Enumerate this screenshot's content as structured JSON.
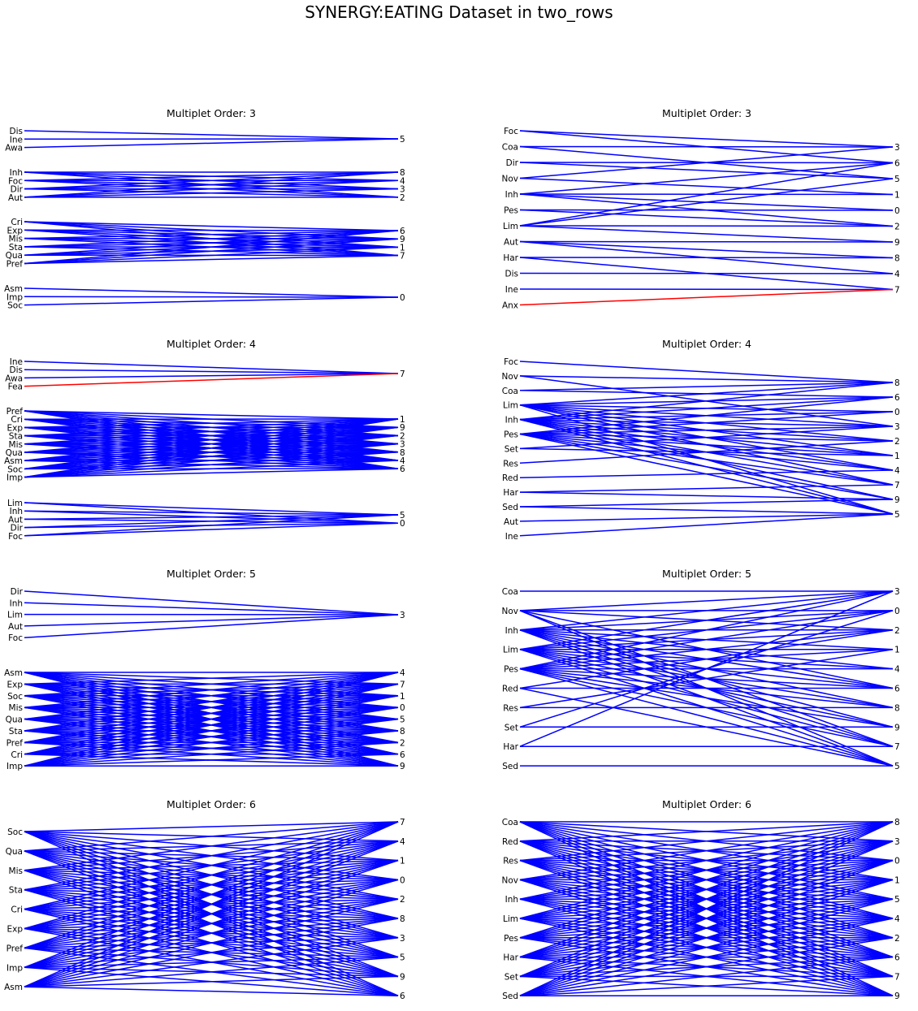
{
  "figure_title": "SYNERGY:EATING Dataset in two_rows",
  "colors": {
    "edge": "#0000ff",
    "highlight": "#ff0000",
    "text": "#000000",
    "background": "#ffffff"
  },
  "panels": [
    {
      "title": "Multiplet Order: 3",
      "clusters": [
        {
          "left": [
            "Dis",
            "Ine",
            "Awa"
          ],
          "right": [
            "5"
          ],
          "edges": "all"
        },
        {
          "left": [
            "Inh",
            "Foc",
            "Dir",
            "Aut"
          ],
          "right": [
            "8",
            "4",
            "3",
            "2"
          ],
          "edges": "all"
        },
        {
          "left": [
            "Cri",
            "Exp",
            "Mis",
            "Sta",
            "Qua",
            "Pref"
          ],
          "right": [
            "6",
            "9",
            "1",
            "7"
          ],
          "edges": "all"
        },
        {
          "left": [
            "Asm",
            "Imp",
            "Soc"
          ],
          "right": [
            "0"
          ],
          "edges": "all"
        }
      ]
    },
    {
      "title": "Multiplet Order: 3",
      "clusters": [
        {
          "left": [
            "Foc",
            "Coa",
            "Dir",
            "Nov",
            "Inh",
            "Pes",
            "Lim",
            "Aut",
            "Har",
            "Dis",
            "Ine",
            "Anx"
          ],
          "right": [
            "3",
            "6",
            "5",
            "1",
            "0",
            "2",
            "9",
            "8",
            "4",
            "7"
          ],
          "edges": [
            [
              0,
              0
            ],
            [
              0,
              1
            ],
            [
              1,
              0
            ],
            [
              1,
              2
            ],
            [
              2,
              1
            ],
            [
              2,
              2
            ],
            [
              3,
              0
            ],
            [
              3,
              3
            ],
            [
              4,
              3
            ],
            [
              4,
              4
            ],
            [
              4,
              5
            ],
            [
              4,
              1
            ],
            [
              5,
              4
            ],
            [
              5,
              5
            ],
            [
              6,
              2
            ],
            [
              6,
              1
            ],
            [
              6,
              5
            ],
            [
              6,
              6
            ],
            [
              7,
              6
            ],
            [
              7,
              7
            ],
            [
              7,
              8
            ],
            [
              8,
              7
            ],
            [
              8,
              9
            ],
            [
              9,
              8
            ],
            [
              10,
              9
            ],
            [
              11,
              9
            ]
          ],
          "highlight": [
            [
              11,
              9
            ]
          ]
        }
      ]
    },
    {
      "title": "Multiplet Order: 4",
      "clusters": [
        {
          "left": [
            "Ine",
            "Dis",
            "Awa",
            "Fea"
          ],
          "right": [
            "7"
          ],
          "edges": "all",
          "highlight": [
            [
              3,
              0
            ]
          ]
        },
        {
          "left": [
            "Pref",
            "Cri",
            "Exp",
            "Sta",
            "Mis",
            "Qua",
            "Asm",
            "Soc",
            "Imp"
          ],
          "right": [
            "1",
            "9",
            "2",
            "3",
            "8",
            "4",
            "6"
          ],
          "edges": "all"
        },
        {
          "left": [
            "Lim",
            "Inh",
            "Aut",
            "Dir",
            "Foc"
          ],
          "right": [
            "5",
            "0"
          ],
          "edges": "all"
        }
      ]
    },
    {
      "title": "Multiplet Order: 4",
      "clusters": [
        {
          "left": [
            "Foc",
            "Nov",
            "Coa",
            "Lim",
            "Inh",
            "Pes",
            "Set",
            "Res",
            "Red",
            "Har",
            "Sed",
            "Aut",
            "Ine"
          ],
          "right": [
            "8",
            "6",
            "0",
            "3",
            "2",
            "1",
            "4",
            "7",
            "9",
            "5"
          ],
          "edges": [
            [
              0,
              0
            ],
            [
              1,
              0
            ],
            [
              1,
              3
            ],
            [
              2,
              1
            ],
            [
              2,
              0
            ],
            [
              3,
              0
            ],
            [
              3,
              1
            ],
            [
              3,
              2
            ],
            [
              3,
              3
            ],
            [
              3,
              4
            ],
            [
              3,
              5
            ],
            [
              3,
              6
            ],
            [
              3,
              7
            ],
            [
              3,
              9
            ],
            [
              4,
              0
            ],
            [
              4,
              1
            ],
            [
              4,
              2
            ],
            [
              4,
              3
            ],
            [
              4,
              4
            ],
            [
              4,
              5
            ],
            [
              4,
              6
            ],
            [
              4,
              7
            ],
            [
              4,
              8
            ],
            [
              4,
              9
            ],
            [
              5,
              1
            ],
            [
              5,
              2
            ],
            [
              5,
              3
            ],
            [
              5,
              4
            ],
            [
              5,
              5
            ],
            [
              5,
              6
            ],
            [
              5,
              7
            ],
            [
              5,
              8
            ],
            [
              5,
              9
            ],
            [
              6,
              3
            ],
            [
              6,
              5
            ],
            [
              7,
              4
            ],
            [
              8,
              6
            ],
            [
              9,
              8
            ],
            [
              9,
              7
            ],
            [
              10,
              8
            ],
            [
              10,
              9
            ],
            [
              11,
              9
            ],
            [
              12,
              9
            ]
          ]
        }
      ]
    },
    {
      "title": "Multiplet Order: 5",
      "clusters": [
        {
          "left": [
            "Dir",
            "Inh",
            "Lim",
            "Aut",
            "Foc"
          ],
          "right": [
            "3"
          ],
          "edges": "all"
        },
        {
          "left": [
            "Asm",
            "Exp",
            "Soc",
            "Mis",
            "Qua",
            "Sta",
            "Pref",
            "Cri",
            "Imp"
          ],
          "right": [
            "4",
            "7",
            "1",
            "0",
            "5",
            "8",
            "2",
            "6",
            "9"
          ],
          "edges": "all"
        }
      ]
    },
    {
      "title": "Multiplet Order: 5",
      "clusters": [
        {
          "left": [
            "Coa",
            "Nov",
            "Inh",
            "Lim",
            "Pes",
            "Red",
            "Res",
            "Set",
            "Har",
            "Sed"
          ],
          "right": [
            "3",
            "0",
            "2",
            "1",
            "4",
            "6",
            "8",
            "9",
            "7",
            "5"
          ],
          "edges": [
            [
              0,
              0
            ],
            [
              1,
              0
            ],
            [
              1,
              1
            ],
            [
              1,
              2
            ],
            [
              1,
              5
            ],
            [
              1,
              8
            ],
            [
              1,
              9
            ],
            [
              2,
              0
            ],
            [
              2,
              1
            ],
            [
              2,
              2
            ],
            [
              2,
              3
            ],
            [
              2,
              4
            ],
            [
              2,
              5
            ],
            [
              2,
              6
            ],
            [
              2,
              7
            ],
            [
              2,
              8
            ],
            [
              2,
              9
            ],
            [
              3,
              0
            ],
            [
              3,
              1
            ],
            [
              3,
              2
            ],
            [
              3,
              3
            ],
            [
              3,
              4
            ],
            [
              3,
              5
            ],
            [
              3,
              6
            ],
            [
              3,
              7
            ],
            [
              3,
              8
            ],
            [
              3,
              9
            ],
            [
              4,
              0
            ],
            [
              4,
              1
            ],
            [
              4,
              2
            ],
            [
              4,
              3
            ],
            [
              4,
              4
            ],
            [
              4,
              5
            ],
            [
              4,
              6
            ],
            [
              4,
              7
            ],
            [
              4,
              8
            ],
            [
              4,
              9
            ],
            [
              5,
              2
            ],
            [
              5,
              5
            ],
            [
              5,
              9
            ],
            [
              6,
              3
            ],
            [
              6,
              6
            ],
            [
              7,
              1
            ],
            [
              7,
              7
            ],
            [
              8,
              0
            ],
            [
              8,
              8
            ],
            [
              9,
              9
            ]
          ]
        }
      ]
    },
    {
      "title": "Multiplet Order: 6",
      "clusters": [
        {
          "left": [
            "Soc",
            "Qua",
            "Mis",
            "Sta",
            "Cri",
            "Exp",
            "Pref",
            "Imp",
            "Asm"
          ],
          "right": [
            "7",
            "4",
            "1",
            "0",
            "2",
            "8",
            "3",
            "5",
            "9",
            "6"
          ],
          "edges": "all"
        }
      ]
    },
    {
      "title": "Multiplet Order: 6",
      "clusters": [
        {
          "left": [
            "Coa",
            "Red",
            "Res",
            "Nov",
            "Inh",
            "Lim",
            "Pes",
            "Har",
            "Set",
            "Sed"
          ],
          "right": [
            "8",
            "3",
            "0",
            "1",
            "5",
            "4",
            "2",
            "6",
            "7",
            "9"
          ],
          "edges": "all"
        }
      ]
    }
  ]
}
